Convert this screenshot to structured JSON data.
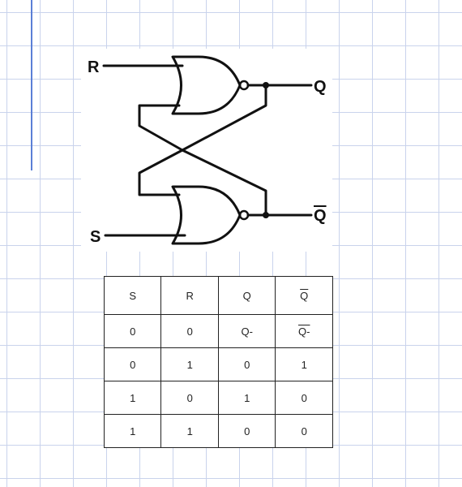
{
  "circuit": {
    "input_r": "R",
    "input_s": "S",
    "output_q": "Q",
    "output_q_bar": "Q"
  },
  "truth_table": {
    "headers": [
      "S",
      "R",
      "Q",
      "Q"
    ],
    "rows": [
      [
        "0",
        "0",
        "Q-",
        "Q-"
      ],
      [
        "0",
        "1",
        "0",
        "1"
      ],
      [
        "1",
        "0",
        "1",
        "0"
      ],
      [
        "1",
        "1",
        "0",
        "0"
      ]
    ]
  }
}
